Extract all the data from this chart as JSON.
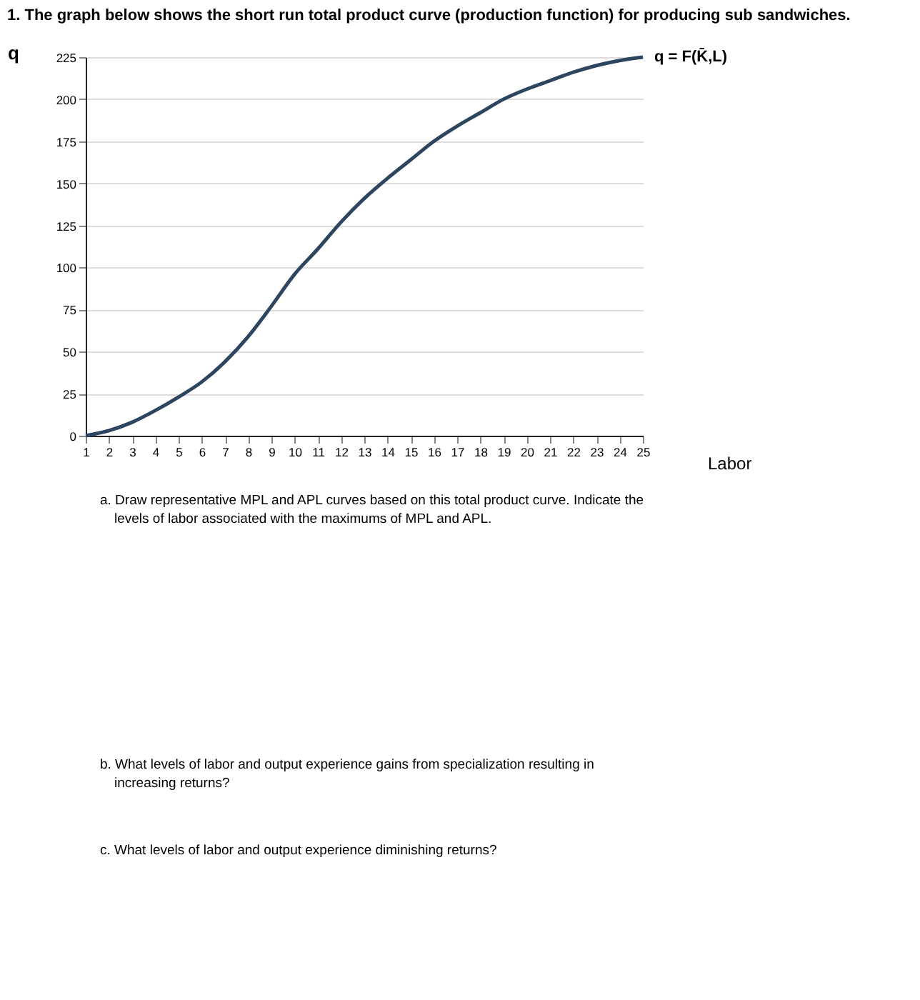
{
  "chart_data": {
    "type": "line",
    "title": "1. The graph below shows the short run total product curve (production function) for producing sub sandwiches.",
    "xlabel": "Labor",
    "ylabel": "q",
    "x": [
      1,
      2,
      3,
      4,
      5,
      6,
      7,
      8,
      9,
      10,
      11,
      12,
      13,
      14,
      15,
      16,
      17,
      18,
      19,
      20,
      21,
      22,
      23,
      24,
      25
    ],
    "series": [
      {
        "color": "#2e4560",
        "values": [
          0,
          3,
          8,
          15,
          23,
          32,
          44,
          59,
          77,
          96,
          111,
          127,
          141,
          153,
          164,
          175,
          184,
          192,
          200,
          206,
          211,
          216,
          220,
          223,
          225
        ]
      }
    ],
    "xlim": [
      1,
      25
    ],
    "xticks": [
      1,
      2,
      3,
      4,
      5,
      6,
      7,
      8,
      9,
      10,
      11,
      12,
      13,
      14,
      15,
      16,
      17,
      18,
      19,
      20,
      21,
      22,
      23,
      24,
      25
    ],
    "ylim": [
      0,
      225
    ],
    "yticks": [
      0,
      25,
      50,
      75,
      100,
      125,
      150,
      175,
      200,
      225
    ],
    "grid": "y",
    "marker": "none",
    "line_style": "solid",
    "annotations": [
      {
        "text": "q = F(K̄,L)",
        "x": 25,
        "y": 225
      },
      "a. Draw representative MPL and APL curves based on this total product curve. Indicate the levels of labor associated with the maximums of MPL and APL.",
      "b. What levels of labor and output experience gains from specialization resulting in increasing returns?",
      "c. What levels of labor and output experience diminishing returns?"
    ]
  }
}
